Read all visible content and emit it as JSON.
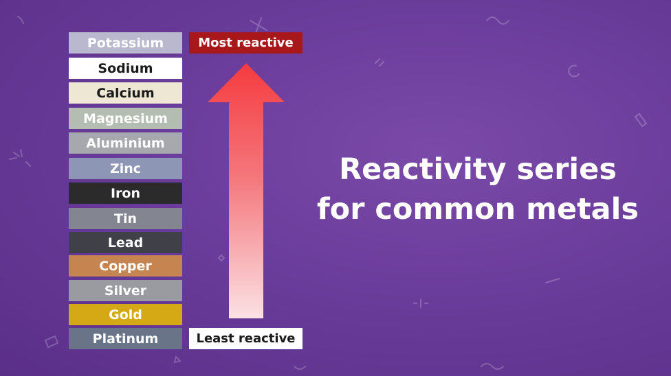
{
  "metals": [
    {
      "label": "Potassium",
      "bg": "#b9b8cf",
      "fg": "#ffffff"
    },
    {
      "label": "Sodium",
      "bg": "#ffffff",
      "fg": "#1a1a1a"
    },
    {
      "label": "Calcium",
      "bg": "#ede7d4",
      "fg": "#1a1a1a"
    },
    {
      "label": "Magnesium",
      "bg": "#b4bdb1",
      "fg": "#ffffff"
    },
    {
      "label": "Aluminium",
      "bg": "#a6a8ad",
      "fg": "#ffffff"
    },
    {
      "label": "Zinc",
      "bg": "#8e96b6",
      "fg": "#ffffff"
    },
    {
      "label": "Iron",
      "bg": "#2b2b2c",
      "fg": "#ffffff"
    },
    {
      "label": "Tin",
      "bg": "#838591",
      "fg": "#ffffff"
    },
    {
      "label": "Lead",
      "bg": "#3f4048",
      "fg": "#ffffff"
    },
    {
      "label": "Copper",
      "bg": "#c58450",
      "fg": "#ffffff"
    },
    {
      "label": "Silver",
      "bg": "#9a9aa1",
      "fg": "#ffffff"
    },
    {
      "label": "Gold",
      "bg": "#d5a816",
      "fg": "#ffffff"
    },
    {
      "label": "Platinum",
      "bg": "#697489",
      "fg": "#ffffff"
    }
  ],
  "most_reactive": {
    "label": "Most reactive",
    "bg": "#a8181b",
    "fg": "#ffffff"
  },
  "least_reactive": {
    "label": "Least reactive",
    "bg": "#ffffff",
    "fg": "#1a1a1a"
  },
  "title": {
    "line1": "Reactivity series",
    "line2": "for common metals"
  },
  "colors": {
    "background": "#6a3c9b",
    "arrow_top": "#f53b3f",
    "arrow_bottom": "#fbe1e4"
  }
}
